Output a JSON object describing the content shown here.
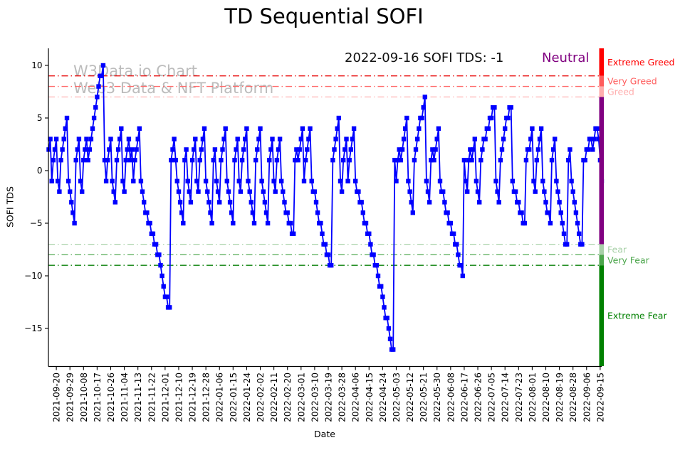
{
  "title": "TD Sequential SOFI",
  "watermark": {
    "line1": "W3Data.io Chart",
    "line2": "Web3 Data & NFT Platform"
  },
  "annotation": {
    "summary": "2022-09-16 SOFI TDS: -1",
    "status": "Neutral",
    "status_color": "#800080"
  },
  "chart_data": {
    "type": "line",
    "title": "TD Sequential SOFI",
    "xlabel": "Date",
    "ylabel": "SOFI TDS",
    "ylim": [
      -18.58,
      11.62
    ],
    "ytick_values": [
      10,
      5,
      0,
      -5,
      -10,
      -15
    ],
    "ytick_labels": [
      "10",
      "5",
      "0",
      "−5",
      "−10",
      "−15"
    ],
    "grid": false,
    "legend": "none",
    "x_start_date": "2021-09-15",
    "x_end_date": "2022-09-16",
    "xtick_labels": [
      "2021-09-20",
      "2021-09-29",
      "2021-10-08",
      "2021-10-17",
      "2021-10-26",
      "2021-11-04",
      "2021-11-13",
      "2021-11-22",
      "2021-12-01",
      "2021-12-10",
      "2021-12-19",
      "2021-12-28",
      "2022-01-06",
      "2022-01-15",
      "2022-01-24",
      "2022-02-02",
      "2022-02-11",
      "2022-02-20",
      "2022-03-01",
      "2022-03-10",
      "2022-03-19",
      "2022-03-28",
      "2022-04-06",
      "2022-04-15",
      "2022-04-24",
      "2022-05-03",
      "2022-05-12",
      "2022-05-21",
      "2022-05-30",
      "2022-06-08",
      "2022-06-17",
      "2022-06-26",
      "2022-07-05",
      "2022-07-14",
      "2022-07-23",
      "2022-08-01",
      "2022-08-10",
      "2022-08-19",
      "2022-08-28",
      "2022-09-06",
      "2022-09-15"
    ],
    "series": [
      {
        "name": "SOFI TDS",
        "color": "#0000ff",
        "marker": "square",
        "values": [
          2,
          3,
          -1,
          1,
          2,
          3,
          -1,
          -2,
          1,
          2,
          3,
          4,
          5,
          -1,
          -2,
          -3,
          -4,
          -5,
          1,
          2,
          3,
          -1,
          -2,
          1,
          2,
          3,
          1,
          2,
          3,
          4,
          5,
          6,
          7,
          8,
          9,
          9,
          10,
          1,
          -1,
          1,
          2,
          3,
          -1,
          -2,
          -3,
          1,
          2,
          3,
          4,
          -1,
          -2,
          1,
          2,
          3,
          1,
          2,
          -1,
          1,
          2,
          3,
          4,
          -1,
          -2,
          -3,
          -4,
          -4,
          -5,
          -5,
          -6,
          -6,
          -7,
          -7,
          -8,
          -8,
          -9,
          -10,
          -11,
          -12,
          -12,
          -13,
          -13,
          1,
          2,
          3,
          1,
          -1,
          -2,
          -3,
          -4,
          -5,
          1,
          2,
          -1,
          -2,
          -3,
          1,
          2,
          3,
          -1,
          -2,
          1,
          2,
          3,
          4,
          -1,
          -2,
          -3,
          -4,
          -5,
          1,
          2,
          -1,
          -2,
          -3,
          1,
          2,
          3,
          4,
          -1,
          -2,
          -3,
          -4,
          -5,
          1,
          2,
          3,
          -1,
          -2,
          1,
          2,
          3,
          4,
          -1,
          -2,
          -3,
          -4,
          -5,
          1,
          2,
          3,
          4,
          -1,
          -2,
          -3,
          -4,
          -5,
          1,
          2,
          3,
          -1,
          -2,
          1,
          2,
          3,
          -1,
          -2,
          -3,
          -4,
          -4,
          -5,
          -5,
          -6,
          -6,
          1,
          2,
          1,
          2,
          3,
          4,
          -1,
          1,
          2,
          3,
          4,
          -1,
          -2,
          -2,
          -3,
          -4,
          -5,
          -5,
          -6,
          -7,
          -7,
          -8,
          -8,
          -9,
          -9,
          1,
          2,
          3,
          4,
          5,
          -1,
          -2,
          1,
          2,
          3,
          -1,
          1,
          2,
          3,
          4,
          -1,
          -2,
          -2,
          -3,
          -3,
          -4,
          -5,
          -5,
          -6,
          -6,
          -7,
          -8,
          -8,
          -9,
          -9,
          -10,
          -11,
          -11,
          -12,
          -13,
          -14,
          -14,
          -15,
          -16,
          -17,
          -17,
          1,
          -1,
          1,
          2,
          1,
          2,
          3,
          4,
          5,
          -1,
          -2,
          -3,
          -4,
          1,
          2,
          3,
          4,
          5,
          5,
          6,
          7,
          -1,
          -2,
          -3,
          1,
          2,
          1,
          2,
          3,
          4,
          -1,
          -2,
          -2,
          -3,
          -4,
          -4,
          -5,
          -5,
          -6,
          -6,
          -7,
          -7,
          -8,
          -9,
          -9,
          -10,
          1,
          -1,
          -2,
          1,
          2,
          1,
          2,
          3,
          -1,
          -2,
          -3,
          1,
          2,
          3,
          3,
          4,
          4,
          5,
          5,
          6,
          6,
          -1,
          -2,
          -3,
          1,
          2,
          3,
          4,
          5,
          5,
          6,
          6,
          -1,
          -2,
          -2,
          -3,
          -3,
          -4,
          -4,
          -5,
          -5,
          1,
          2,
          2,
          3,
          4,
          -1,
          -2,
          1,
          2,
          3,
          4,
          -1,
          -2,
          -3,
          -4,
          -4,
          -5,
          1,
          2,
          3,
          -1,
          -2,
          -3,
          -4,
          -5,
          -6,
          -7,
          -7,
          1,
          2,
          -1,
          -2,
          -3,
          -4,
          -5,
          -6,
          -7,
          -7,
          1,
          1,
          2,
          2,
          3,
          3,
          2,
          3,
          4,
          4,
          3,
          1,
          -1
        ]
      }
    ],
    "thresholds": [
      {
        "value": 9,
        "label": "Extreme Greed",
        "color": "#e60000"
      },
      {
        "value": 8,
        "label": "Very Greed",
        "color": "#ff6b6b"
      },
      {
        "value": 7,
        "label": "Greed",
        "color": "#ffb3b3"
      },
      {
        "value": -7,
        "label": "Fear",
        "color": "#abd3ab"
      },
      {
        "value": -8,
        "label": "Very Fear",
        "color": "#55aa55"
      },
      {
        "value": -9,
        "label": "Extreme Fear",
        "color": "#0a800a"
      }
    ],
    "sentiment_bands": [
      {
        "label": "Extreme Greed",
        "from": 11.62,
        "to": 9,
        "color": "#ff0000"
      },
      {
        "label": "Very Greed",
        "from": 9,
        "to": 8,
        "color": "#ff5c5c"
      },
      {
        "label": "Greed",
        "from": 8,
        "to": 7,
        "color": "#ffadad"
      },
      {
        "label": "",
        "from": 7,
        "to": -7,
        "color": "#800080"
      },
      {
        "label": "Fear",
        "from": -7,
        "to": -8,
        "color": "#a8d0a8"
      },
      {
        "label": "Very Fear",
        "from": -8,
        "to": -9,
        "color": "#4ca64c"
      },
      {
        "label": "Extreme Fear",
        "from": -9,
        "to": -18.58,
        "color": "#008000"
      }
    ]
  }
}
